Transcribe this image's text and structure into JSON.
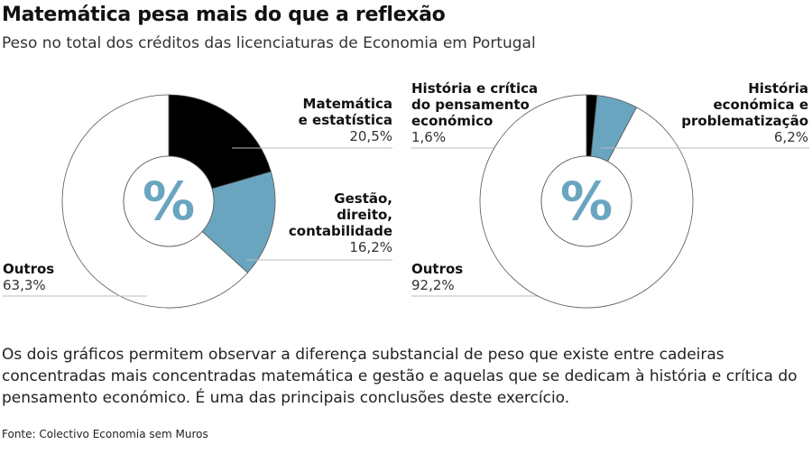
{
  "title": "Matemática pesa mais do que a reflexão",
  "subtitle": "Peso no total dos créditos das licenciaturas de Economia em Portugal",
  "colors": {
    "black": "#000000",
    "blue": "#6aa5c0",
    "white": "#ffffff"
  },
  "center_symbol": "%",
  "chart_data": [
    {
      "type": "pie",
      "donut": true,
      "slices": [
        {
          "name": "Matemática e estatística",
          "value": 20.5,
          "label": "20,5%",
          "color": "#000000"
        },
        {
          "name": "Gestão, direito, contabilidade",
          "value": 16.2,
          "label": "16,2%",
          "color": "#6aa5c0"
        },
        {
          "name": "Outros",
          "value": 63.3,
          "label": "63,3%",
          "color": "#ffffff"
        }
      ]
    },
    {
      "type": "pie",
      "donut": true,
      "slices": [
        {
          "name": "História e crítica do pensamento económico",
          "value": 1.6,
          "label": "1,6%",
          "color": "#000000"
        },
        {
          "name": "História económica e problematização",
          "value": 6.2,
          "label": "6,2%",
          "color": "#6aa5c0"
        },
        {
          "name": "Outros",
          "value": 92.2,
          "label": "92,2%",
          "color": "#ffffff"
        }
      ]
    }
  ],
  "labels": {
    "l1_name": [
      "Matemática",
      "e estatística"
    ],
    "l2_name": [
      "Gestão,",
      "direito,",
      "contabilidade"
    ],
    "l3_name": [
      "Outros"
    ],
    "r1_name": [
      "História e crítica",
      "do pensamento",
      "económico"
    ],
    "r2_name": [
      "História",
      "económica e",
      "problematização"
    ],
    "r3_name": [
      "Outros"
    ]
  },
  "body": "Os dois gráficos permitem observar a diferença substancial de peso que existe entre cadeiras concentradas mais concentradas matemática e gestão e aquelas que se dedicam à história e crítica do pensamento económico. É uma das principais conclusões deste exercício.",
  "source": "Fonte: Colectivo Economia sem Muros"
}
